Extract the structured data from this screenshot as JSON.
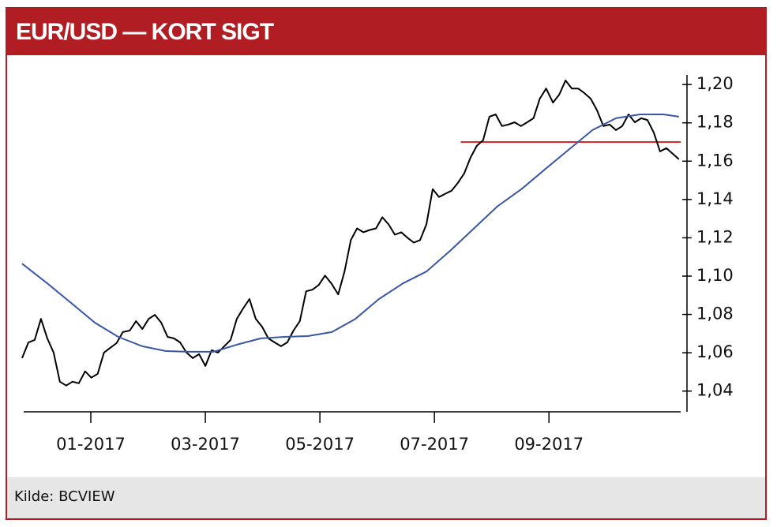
{
  "chart_data": {
    "type": "line",
    "title": "EUR/USD — KORT SIGT",
    "source": "Kilde: BCVIEW",
    "xlim": [
      -0.31,
      11.3
    ],
    "ylim": [
      1.03,
      1.205
    ],
    "xticks": [
      {
        "value": 1,
        "label": "01-2017"
      },
      {
        "value": 3,
        "label": "03-2017"
      },
      {
        "value": 5,
        "label": "05-2017"
      },
      {
        "value": 7,
        "label": "07-2017"
      },
      {
        "value": 9,
        "label": "09-2017"
      }
    ],
    "yticks": [
      {
        "value": 1.04,
        "label": "1,04"
      },
      {
        "value": 1.06,
        "label": "1,06"
      },
      {
        "value": 1.08,
        "label": "1,08"
      },
      {
        "value": 1.1,
        "label": "1,10"
      },
      {
        "value": 1.12,
        "label": "1,12"
      },
      {
        "value": 1.14,
        "label": "1,14"
      },
      {
        "value": 1.16,
        "label": "1,16"
      },
      {
        "value": 1.18,
        "label": "1,18"
      },
      {
        "value": 1.2,
        "label": "1,20"
      }
    ],
    "series": [
      {
        "color": "#000000",
        "x": [
          -0.2,
          -0.09,
          0.02,
          0.13,
          0.24,
          0.35,
          0.46,
          0.57,
          0.68,
          0.79,
          0.9,
          1.01,
          1.12,
          1.23,
          1.34,
          1.45,
          1.56,
          1.68,
          1.79,
          1.9,
          2.01,
          2.12,
          2.23,
          2.34,
          2.45,
          2.56,
          2.67,
          2.78,
          2.89,
          3.0,
          3.11,
          3.22,
          3.33,
          3.44,
          3.55,
          3.66,
          3.77,
          3.88,
          3.99,
          4.1,
          4.21,
          4.32,
          4.43,
          4.54,
          4.65,
          4.76,
          4.87,
          4.98,
          5.09,
          5.2,
          5.32,
          5.43,
          5.54,
          5.65,
          5.76,
          5.87,
          5.98,
          6.09,
          6.2,
          6.31,
          6.42,
          6.53,
          6.64,
          6.75,
          6.86,
          6.97,
          7.08,
          7.19,
          7.3,
          7.41,
          7.52,
          7.63,
          7.74,
          7.85,
          7.96,
          8.07,
          8.18,
          8.29,
          8.4,
          8.51,
          8.62,
          8.73,
          8.84,
          8.95,
          9.07,
          9.18,
          9.29,
          9.4,
          9.51,
          9.62,
          9.73,
          9.84,
          9.95,
          10.06,
          10.17,
          10.28,
          10.39,
          10.5,
          10.61,
          10.72,
          10.83,
          10.94,
          11.05,
          11.16,
          11.27
        ],
        "values": [
          1.0572,
          1.0654,
          1.0667,
          1.0777,
          1.0675,
          1.0601,
          1.0449,
          1.0429,
          1.0449,
          1.0441,
          1.0503,
          1.047,
          1.049,
          1.0601,
          1.0626,
          1.065,
          1.0708,
          1.0716,
          1.0765,
          1.0724,
          1.0777,
          1.0798,
          1.0757,
          1.0683,
          1.0675,
          1.0654,
          1.0601,
          1.0572,
          1.0593,
          1.0531,
          1.0613,
          1.0601,
          1.0634,
          1.0667,
          1.0777,
          1.0831,
          1.088,
          1.0777,
          1.0736,
          1.0675,
          1.0654,
          1.0634,
          1.0654,
          1.0716,
          1.0765,
          1.0921,
          1.0929,
          1.0954,
          1.1003,
          1.0962,
          1.0905,
          1.1024,
          1.1188,
          1.1249,
          1.1229,
          1.1241,
          1.1249,
          1.1307,
          1.127,
          1.1216,
          1.1229,
          1.12,
          1.1175,
          1.1188,
          1.127,
          1.1454,
          1.1413,
          1.143,
          1.1446,
          1.1487,
          1.1536,
          1.1618,
          1.168,
          1.1709,
          1.1832,
          1.1844,
          1.1783,
          1.1791,
          1.1803,
          1.1783,
          1.1803,
          1.1824,
          1.1926,
          1.1979,
          1.1906,
          1.1947,
          1.2021,
          1.1979,
          1.1979,
          1.1955,
          1.1926,
          1.1865,
          1.1783,
          1.1791,
          1.1762,
          1.1783,
          1.1844,
          1.1803,
          1.1824,
          1.1815,
          1.175,
          1.1651,
          1.1668,
          1.1639,
          1.161
        ]
      },
      {
        "color": "#3a57a6",
        "x": [
          -0.2,
          0.24,
          0.66,
          1.07,
          1.48,
          1.9,
          2.31,
          2.72,
          3.14,
          3.55,
          3.97,
          4.38,
          4.79,
          5.21,
          5.62,
          6.03,
          6.45,
          6.86,
          7.28,
          7.69,
          8.1,
          8.52,
          8.93,
          9.34,
          9.76,
          10.17,
          10.59,
          11.0,
          11.27
        ],
        "values": [
          1.1065,
          1.0962,
          1.0859,
          1.0757,
          1.0683,
          1.0634,
          1.0609,
          1.0605,
          1.0605,
          1.0642,
          1.0675,
          1.0683,
          1.0687,
          1.0708,
          1.0777,
          1.088,
          1.0962,
          1.1024,
          1.1134,
          1.1249,
          1.1364,
          1.1454,
          1.1557,
          1.1659,
          1.1762,
          1.1824,
          1.1844,
          1.1844,
          1.1832
        ]
      }
    ],
    "reference_lines": [
      {
        "value": 1.17,
        "x": [
          7.46,
          11.3
        ],
        "color": "#e0262b"
      }
    ]
  }
}
